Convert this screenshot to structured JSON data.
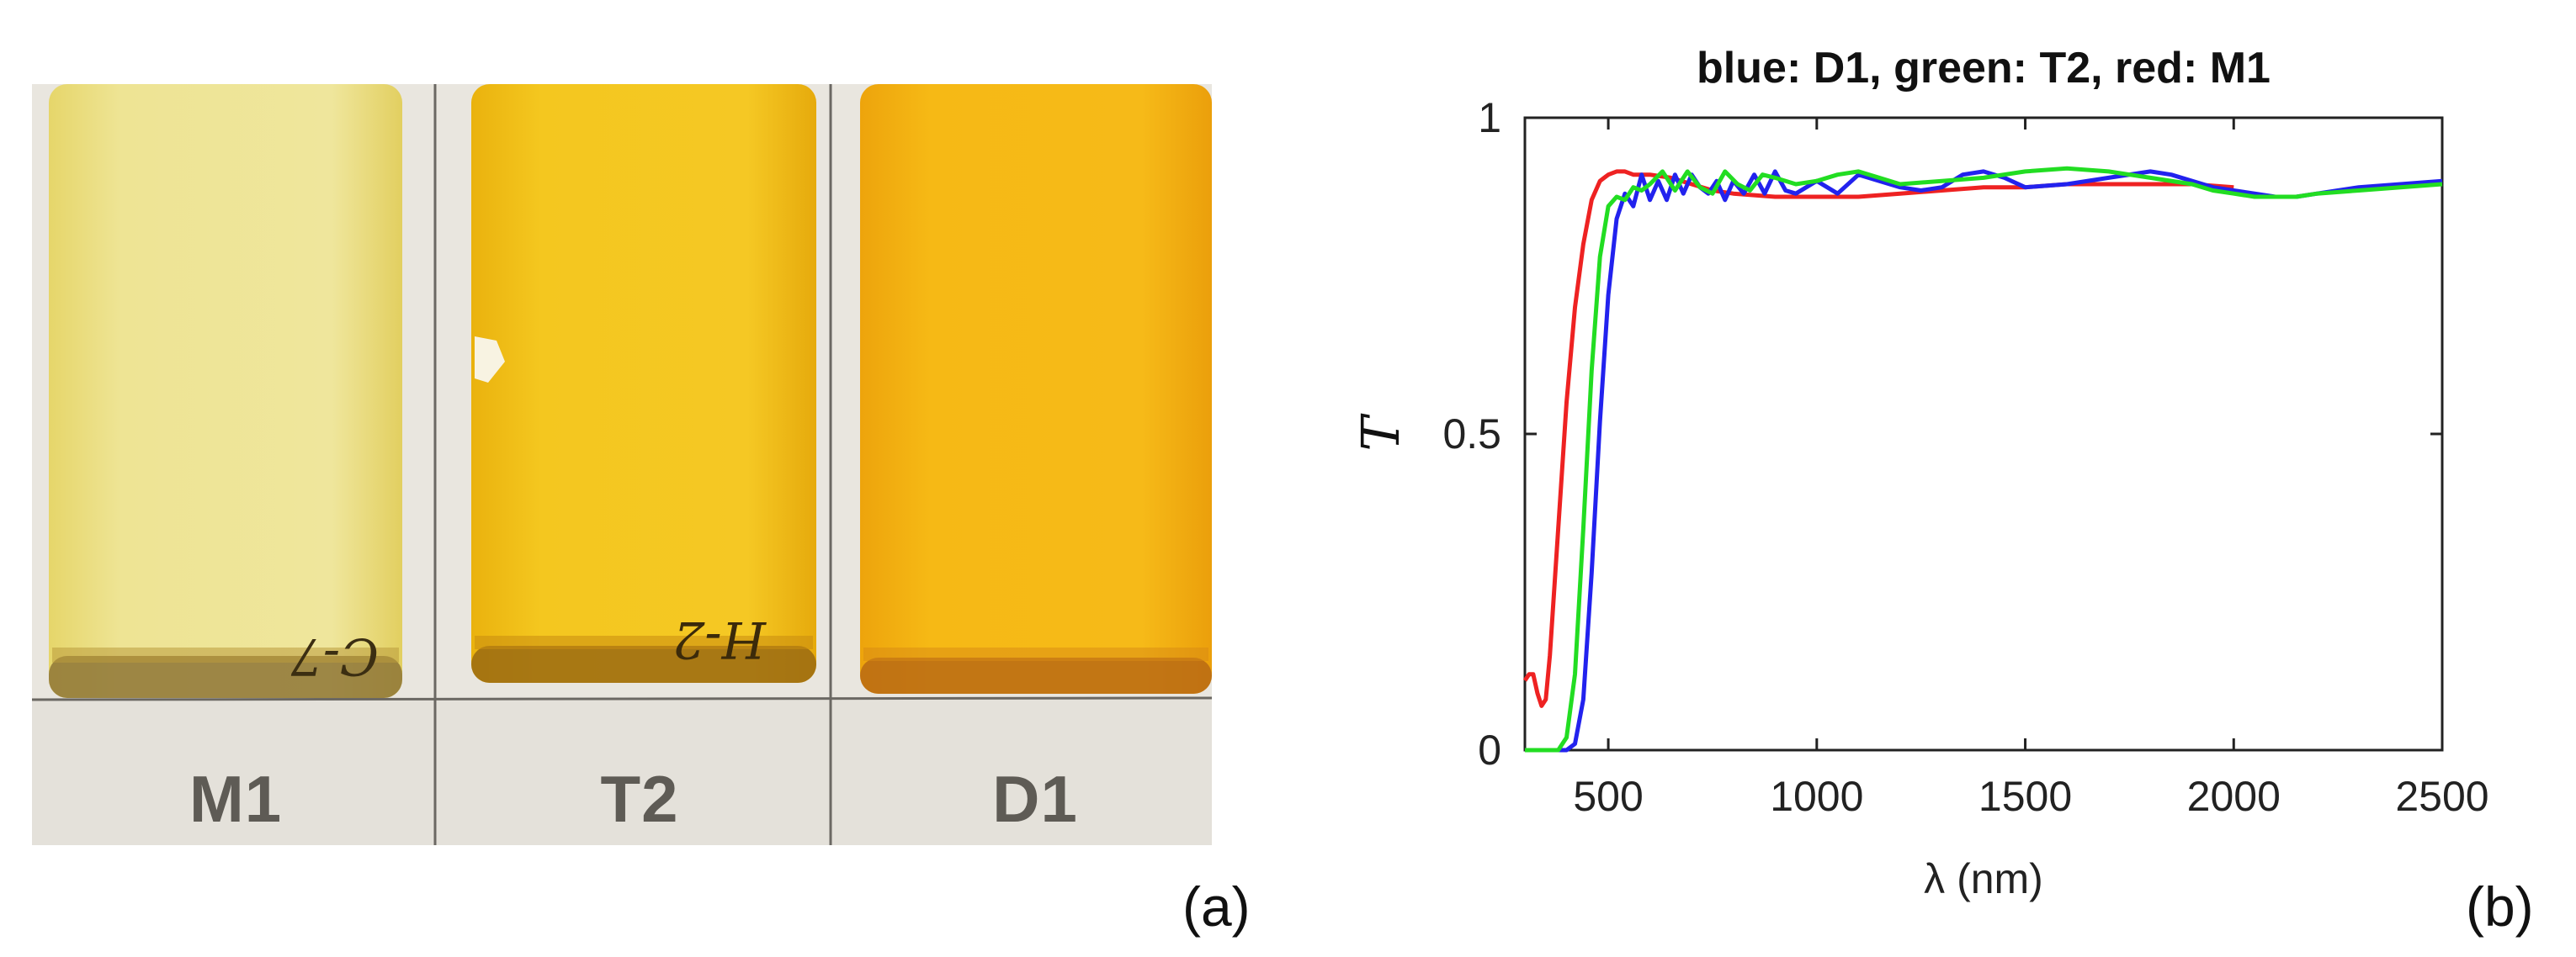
{
  "panel_a": {
    "samples": [
      {
        "label": "M1",
        "color": "#ede088"
      },
      {
        "label": "T2",
        "color": "#f2c21b"
      },
      {
        "label": "D1",
        "color": "#f3b312"
      }
    ],
    "letter": "(a)"
  },
  "panel_b": {
    "letter": "(b)"
  },
  "chart_data": {
    "type": "line",
    "title": "blue: D1, green: T2, red: M1",
    "xlabel": "λ (nm)",
    "ylabel": "T",
    "xlim": [
      300,
      2500
    ],
    "ylim": [
      0,
      1
    ],
    "xticks": [
      500,
      1000,
      1500,
      2000,
      2500
    ],
    "yticks": [
      0,
      0.5,
      1
    ],
    "xtick_labels": [
      "500",
      "1000",
      "1500",
      "2000",
      "2500"
    ],
    "ytick_labels": [
      "0",
      "0.5",
      "1"
    ],
    "grid": false,
    "series": [
      {
        "name": "D1",
        "color": "#2222ee",
        "x": [
          300,
          400,
          420,
          440,
          460,
          480,
          500,
          520,
          540,
          560,
          580,
          600,
          620,
          640,
          660,
          680,
          700,
          720,
          740,
          760,
          780,
          800,
          825,
          850,
          875,
          900,
          925,
          950,
          1000,
          1050,
          1100,
          1150,
          1200,
          1250,
          1300,
          1350,
          1400,
          1450,
          1500,
          1600,
          1700,
          1800,
          1850,
          1900,
          1950,
          2000,
          2050,
          2100,
          2150,
          2200,
          2300,
          2400,
          2500
        ],
        "y": [
          0,
          0,
          0.01,
          0.08,
          0.28,
          0.52,
          0.72,
          0.84,
          0.88,
          0.86,
          0.91,
          0.87,
          0.9,
          0.87,
          0.91,
          0.88,
          0.91,
          0.89,
          0.88,
          0.9,
          0.87,
          0.9,
          0.88,
          0.91,
          0.88,
          0.915,
          0.885,
          0.88,
          0.9,
          0.88,
          0.91,
          0.9,
          0.89,
          0.885,
          0.89,
          0.91,
          0.915,
          0.905,
          0.89,
          0.895,
          0.905,
          0.915,
          0.91,
          0.9,
          0.89,
          0.885,
          0.88,
          0.875,
          0.875,
          0.88,
          0.89,
          0.895,
          0.9
        ]
      },
      {
        "name": "T2",
        "color": "#22dd22",
        "x": [
          300,
          380,
          400,
          420,
          440,
          460,
          480,
          500,
          520,
          540,
          560,
          580,
          600,
          630,
          660,
          690,
          720,
          750,
          780,
          810,
          840,
          870,
          900,
          950,
          1000,
          1050,
          1100,
          1150,
          1200,
          1300,
          1400,
          1500,
          1600,
          1700,
          1800,
          1900,
          1950,
          2000,
          2050,
          2100,
          2150,
          2200,
          2300,
          2400,
          2500
        ],
        "y": [
          0,
          0,
          0.02,
          0.12,
          0.35,
          0.6,
          0.78,
          0.86,
          0.875,
          0.87,
          0.89,
          0.885,
          0.895,
          0.915,
          0.885,
          0.915,
          0.89,
          0.88,
          0.915,
          0.895,
          0.885,
          0.91,
          0.905,
          0.895,
          0.9,
          0.91,
          0.915,
          0.905,
          0.895,
          0.9,
          0.905,
          0.915,
          0.92,
          0.915,
          0.905,
          0.895,
          0.885,
          0.88,
          0.875,
          0.875,
          0.875,
          0.88,
          0.885,
          0.89,
          0.895
        ]
      },
      {
        "name": "M1",
        "color": "#ee2222",
        "x": [
          300,
          310,
          320,
          330,
          340,
          350,
          360,
          380,
          400,
          420,
          440,
          460,
          480,
          500,
          520,
          540,
          560,
          580,
          600,
          650,
          700,
          750,
          800,
          900,
          1000,
          1100,
          1200,
          1300,
          1400,
          1500,
          1600,
          1700,
          1800,
          1900,
          2000
        ],
        "y": [
          0.11,
          0.12,
          0.12,
          0.09,
          0.07,
          0.08,
          0.15,
          0.35,
          0.55,
          0.7,
          0.8,
          0.87,
          0.9,
          0.91,
          0.915,
          0.915,
          0.91,
          0.91,
          0.91,
          0.905,
          0.895,
          0.885,
          0.88,
          0.875,
          0.875,
          0.875,
          0.88,
          0.885,
          0.89,
          0.89,
          0.895,
          0.895,
          0.895,
          0.895,
          0.89
        ]
      }
    ]
  }
}
